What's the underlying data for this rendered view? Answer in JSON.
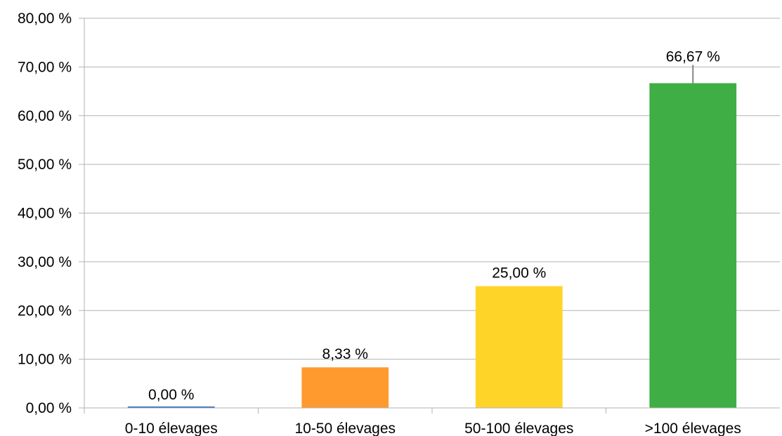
{
  "chart_data": {
    "type": "bar",
    "categories": [
      "0-10 élevages",
      "10-50 élevages",
      "50-100 élevages",
      ">100 élevages"
    ],
    "values": [
      0.0,
      8.33,
      25.0,
      66.67
    ],
    "data_labels": [
      "0,00 %",
      "8,33 %",
      "25,00 %",
      "66,67 %"
    ],
    "bar_colors": [
      "#2a6ebb",
      "#ff9a2e",
      "#ffd429",
      "#3fae45"
    ],
    "ylim": [
      0,
      80
    ],
    "y_ticks": [
      0,
      10,
      20,
      30,
      40,
      50,
      60,
      70,
      80
    ],
    "y_tick_labels": [
      "0,00 %",
      "10,00 %",
      "20,00 %",
      "30,00 %",
      "40,00 %",
      "50,00 %",
      "60,00 %",
      "70,00 %",
      "80,00 %"
    ],
    "grid": true,
    "legend": false,
    "title": "",
    "xlabel": "",
    "ylabel": ""
  }
}
